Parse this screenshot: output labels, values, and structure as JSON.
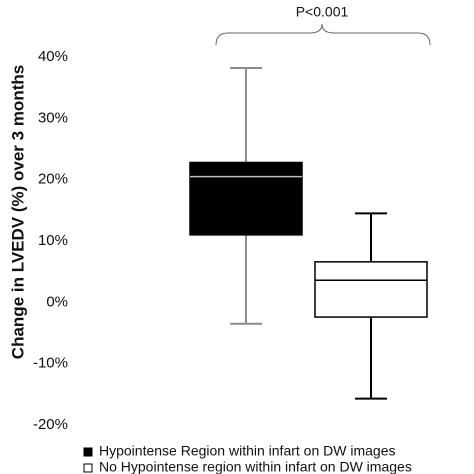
{
  "chart_data": {
    "type": "box",
    "y_label": "Change in LVEDV (%) over 3 months",
    "annotation": "P<0.001",
    "series": [
      {
        "name": "Hypointense Region within infart on DW images",
        "color": "#000000",
        "whisker_color": "#8c8c8c",
        "median_color": "#bbbbbb",
        "min": -3.5,
        "q1": 11,
        "median": 20.5,
        "q3": 22.8,
        "max": 38.2
      },
      {
        "name": "No Hypointense region within infart on DW images",
        "color": "#ffffff",
        "whisker_color": "#000000",
        "median_color": "#000000",
        "min": -15.7,
        "q1": -2.4,
        "median": 3.6,
        "q3": 6.6,
        "max": 14.5
      }
    ],
    "ylim": [
      -20,
      40
    ],
    "yticks": [
      {
        "value": -20,
        "label": "-20%"
      },
      {
        "value": -10,
        "label": "-10%"
      },
      {
        "value": 0,
        "label": "0%"
      },
      {
        "value": 10,
        "label": "10%"
      },
      {
        "value": 20,
        "label": "20%"
      },
      {
        "value": 30,
        "label": "30%"
      },
      {
        "value": 40,
        "label": "40%"
      }
    ]
  }
}
